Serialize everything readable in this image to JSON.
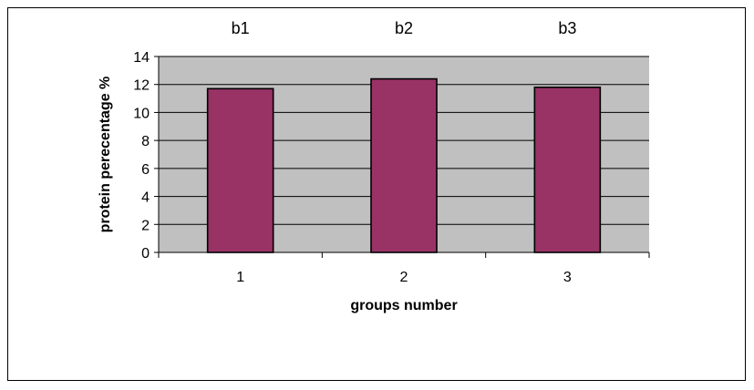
{
  "chart_data": {
    "type": "bar",
    "categories": [
      "1",
      "2",
      "3"
    ],
    "series": [
      {
        "values": [
          11.7,
          12.4,
          11.8
        ]
      }
    ],
    "annotations": [
      "b1",
      "b2",
      "b3"
    ],
    "xlabel": "groups number",
    "ylabel": "protein perecentage %",
    "ylim": [
      0,
      14
    ],
    "yticks": [
      "0",
      "2",
      "4",
      "6",
      "8",
      "10",
      "12",
      "14"
    ],
    "grid": true,
    "legend": "none",
    "colors": {
      "bar": "#993366",
      "plot_background": "#c0c0c0",
      "gridline": "#000000",
      "frame_border": "#000000"
    }
  }
}
